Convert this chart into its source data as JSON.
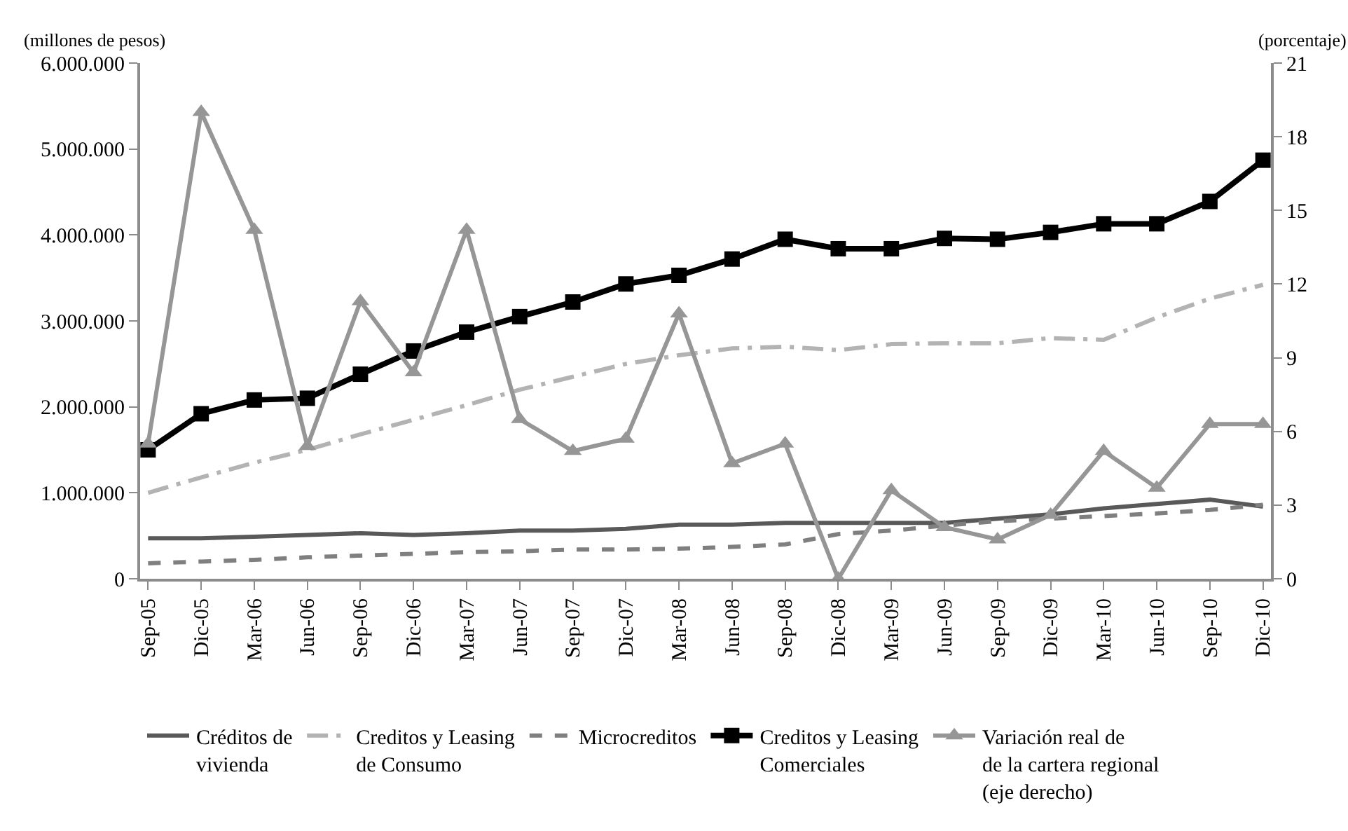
{
  "chart_data": {
    "type": "line",
    "ylabel": "(millones de pesos)",
    "y2label": "(porcentaje)",
    "categories": [
      "Sep-05",
      "Dic-05",
      "Mar-06",
      "Jun-06",
      "Sep-06",
      "Dic-06",
      "Mar-07",
      "Jun-07",
      "Sep-07",
      "Dic-07",
      "Mar-08",
      "Jun-08",
      "Sep-08",
      "Dic-08",
      "Mar-09",
      "Jun-09",
      "Sep-09",
      "Dic-09",
      "Mar-10",
      "Jun-10",
      "Sep-10",
      "Dic-10"
    ],
    "series": [
      {
        "name": "Créditos de\nvivienda",
        "color": "#595959",
        "line_style": "solid",
        "marker": "none",
        "values": [
          470000,
          470000,
          490000,
          510000,
          530000,
          510000,
          530000,
          560000,
          560000,
          580000,
          630000,
          630000,
          650000,
          650000,
          650000,
          650000,
          700000,
          750000,
          820000,
          870000,
          920000,
          840000
        ]
      },
      {
        "name": "Creditos y Leasing\nde Consumo",
        "color": "#b3b3b3",
        "line_style": "dashdot",
        "marker": "none",
        "values": [
          1000000,
          1180000,
          1350000,
          1500000,
          1680000,
          1850000,
          2020000,
          2200000,
          2350000,
          2500000,
          2600000,
          2680000,
          2700000,
          2660000,
          2730000,
          2740000,
          2740000,
          2800000,
          2780000,
          3040000,
          3260000,
          3420000
        ]
      },
      {
        "name": "Microcreditos",
        "color": "#7f7f7f",
        "line_style": "dashed",
        "marker": "none",
        "values": [
          180000,
          200000,
          220000,
          250000,
          270000,
          290000,
          310000,
          320000,
          340000,
          340000,
          350000,
          370000,
          400000,
          520000,
          560000,
          620000,
          670000,
          700000,
          730000,
          760000,
          800000,
          860000
        ]
      },
      {
        "name": "Creditos y Leasing\nComerciales",
        "color": "#000000",
        "line_style": "solid",
        "marker": "square",
        "values": [
          1500000,
          1920000,
          2080000,
          2100000,
          2380000,
          2650000,
          2870000,
          3050000,
          3220000,
          3430000,
          3530000,
          3720000,
          3950000,
          3840000,
          3840000,
          3960000,
          3950000,
          4030000,
          4130000,
          4130000,
          4390000,
          4870000
        ]
      },
      {
        "name": "Variación real de\nde la cartera regional\n(eje derecho)",
        "color": "#969696",
        "line_style": "solid",
        "marker": "triangle",
        "axis": "y2",
        "values": [
          5.5,
          19,
          14.2,
          5.4,
          11.3,
          8.4,
          14.2,
          6.5,
          5.2,
          5.7,
          10.8,
          4.7,
          5.5,
          0,
          3.6,
          2.1,
          1.6,
          2.6,
          5.2,
          3.7,
          6.3,
          6.3
        ]
      }
    ],
    "ylim": [
      0,
      6000000
    ],
    "yticks": [
      {
        "value": 0,
        "label": "0"
      },
      {
        "value": 1000000,
        "label": "1.000.000"
      },
      {
        "value": 2000000,
        "label": "2.000.000"
      },
      {
        "value": 3000000,
        "label": "3.000.000"
      },
      {
        "value": 4000000,
        "label": "4.000.000"
      },
      {
        "value": 5000000,
        "label": "5.000.000"
      },
      {
        "value": 6000000,
        "label": "6.000.000"
      }
    ],
    "y2lim": [
      0,
      21
    ],
    "y2ticks": [
      0,
      3,
      6,
      9,
      12,
      15,
      18,
      21
    ],
    "legend": "bottom"
  }
}
